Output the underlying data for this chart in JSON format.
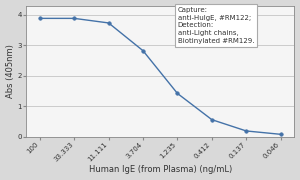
{
  "x_labels": [
    "100",
    "33.333",
    "11.111",
    "3.704",
    "1.235",
    "0.412",
    "0.137",
    "0.046"
  ],
  "x_values": [
    0,
    1,
    2,
    3,
    4,
    5,
    6,
    7
  ],
  "y_values": [
    3.88,
    3.88,
    3.73,
    2.82,
    1.42,
    0.56,
    0.19,
    0.08
  ],
  "line_color": "#4472a8",
  "marker_color": "#4472a8",
  "xlabel": "Human IgE (from Plasma) (ng/mL)",
  "ylabel": "Abs (405nm)",
  "ylim": [
    0,
    4.3
  ],
  "yticks": [
    0,
    1,
    2,
    3,
    4
  ],
  "legend_text": "Capture:\nanti-HuIgE, #RM122;\nDetection:\nanti-Light chains,\nBiotinylated #RM129.",
  "background_color": "#d9d9d9",
  "plot_bg_color": "#f5f5f5",
  "grid_color": "#bbbbbb",
  "legend_fontsize": 5.0,
  "axis_fontsize": 6.0,
  "tick_fontsize": 5.0,
  "xlabel_fontsize": 6.0,
  "ylabel_fontsize": 6.0
}
